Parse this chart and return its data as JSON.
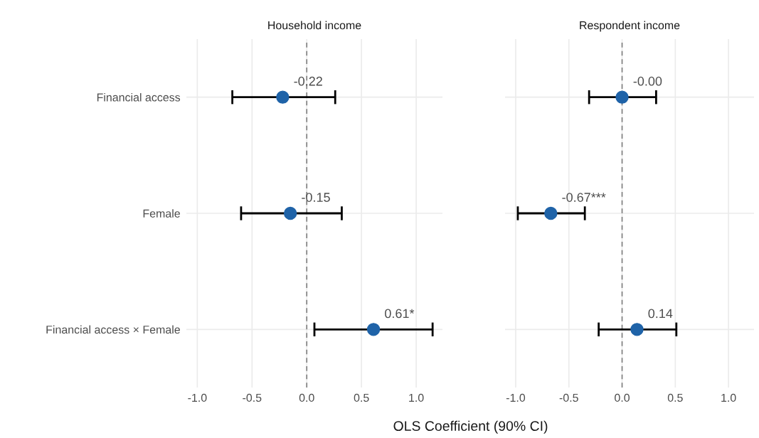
{
  "chart_data": [
    {
      "type": "scatter",
      "orientation": "horizontal",
      "title": "Household income",
      "xlabel": "OLS Coefficient (90% CI)",
      "categories": [
        "Financial access",
        "Female",
        "Financial access × Female"
      ],
      "values": [
        -0.22,
        -0.15,
        0.61
      ],
      "errors": [
        [
          -0.68,
          0.26
        ],
        [
          -0.6,
          0.32
        ],
        [
          0.07,
          1.15
        ]
      ],
      "value_labels": [
        "-0.22",
        "-0.15",
        "0.61*"
      ],
      "color": "#1f63a8",
      "marker": "circle",
      "xlim": [
        -1.1,
        1.24
      ],
      "xticks": [
        {
          "value": -1,
          "label": "-1.0"
        },
        {
          "value": -0.5,
          "label": "-0.5"
        },
        {
          "value": 0,
          "label": "0.0"
        },
        {
          "value": 0.5,
          "label": "0.5"
        },
        {
          "value": 1,
          "label": "1.0"
        }
      ],
      "grid": true,
      "ref_lines": [
        {
          "axis": "x",
          "value": 0,
          "color": "#808080",
          "line_style": "dashed"
        }
      ]
    },
    {
      "type": "scatter",
      "orientation": "horizontal",
      "title": "Respondent income",
      "categories": [
        null,
        null,
        null
      ],
      "values": [
        0.0,
        -0.67,
        0.14
      ],
      "errors": [
        [
          -0.31,
          0.32
        ],
        [
          -0.98,
          -0.35
        ],
        [
          -0.22,
          0.51
        ]
      ],
      "value_labels": [
        "-0.00",
        "-0.67***",
        "0.14"
      ],
      "color": "#1f63a8",
      "marker": "circle",
      "xlim": [
        -1.1,
        1.24
      ],
      "xticks": [
        {
          "value": -1,
          "label": "-1.0"
        },
        {
          "value": -0.5,
          "label": "-0.5"
        },
        {
          "value": 0,
          "label": "0.0"
        },
        {
          "value": 0.5,
          "label": "0.5"
        },
        {
          "value": 1,
          "label": "1.0"
        }
      ],
      "grid": true,
      "ref_lines": [
        {
          "axis": "x",
          "value": 0,
          "color": "#808080",
          "line_style": "dashed"
        }
      ]
    }
  ]
}
